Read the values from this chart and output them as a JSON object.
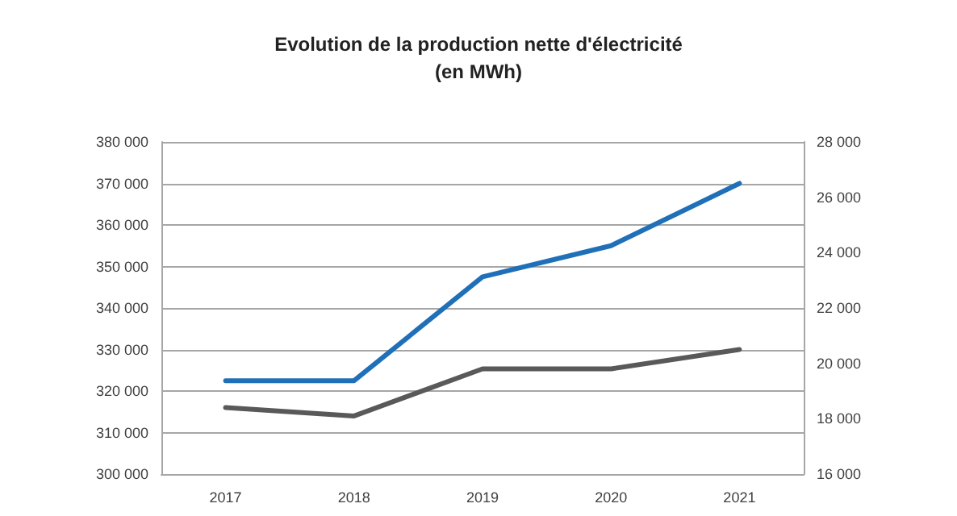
{
  "chart_data": {
    "type": "line",
    "title": "Evolution de la production nette d'électricité\n(en MWh)",
    "categories": [
      "2017",
      "2018",
      "2019",
      "2020",
      "2021"
    ],
    "series": [
      {
        "color": "#1f70b8",
        "values": [
          322500,
          322500,
          347500,
          355000,
          370000
        ]
      },
      {
        "color": "#595959",
        "values": [
          18400,
          18100,
          19800,
          19800,
          20500
        ],
        "axis": "y2"
      }
    ],
    "ylim": [
      300000,
      380000
    ],
    "yticks": [
      {
        "value": 300000,
        "label": "300 000"
      },
      {
        "value": 310000,
        "label": "310 000"
      },
      {
        "value": 320000,
        "label": "320 000"
      },
      {
        "value": 330000,
        "label": "330 000"
      },
      {
        "value": 340000,
        "label": "340 000"
      },
      {
        "value": 350000,
        "label": "350 000"
      },
      {
        "value": 360000,
        "label": "360 000"
      },
      {
        "value": 370000,
        "label": "370 000"
      },
      {
        "value": 380000,
        "label": "380 000"
      }
    ],
    "y2lim": [
      16000,
      28000
    ],
    "y2ticks": [
      {
        "value": 16000,
        "label": "16 000"
      },
      {
        "value": 18000,
        "label": "18 000"
      },
      {
        "value": 20000,
        "label": "20 000"
      },
      {
        "value": 22000,
        "label": "22 000"
      },
      {
        "value": 24000,
        "label": "24 000"
      },
      {
        "value": 26000,
        "label": "26 000"
      },
      {
        "value": 28000,
        "label": "28 000"
      }
    ],
    "grid": "y",
    "marker": "none",
    "line_style": "solid"
  }
}
